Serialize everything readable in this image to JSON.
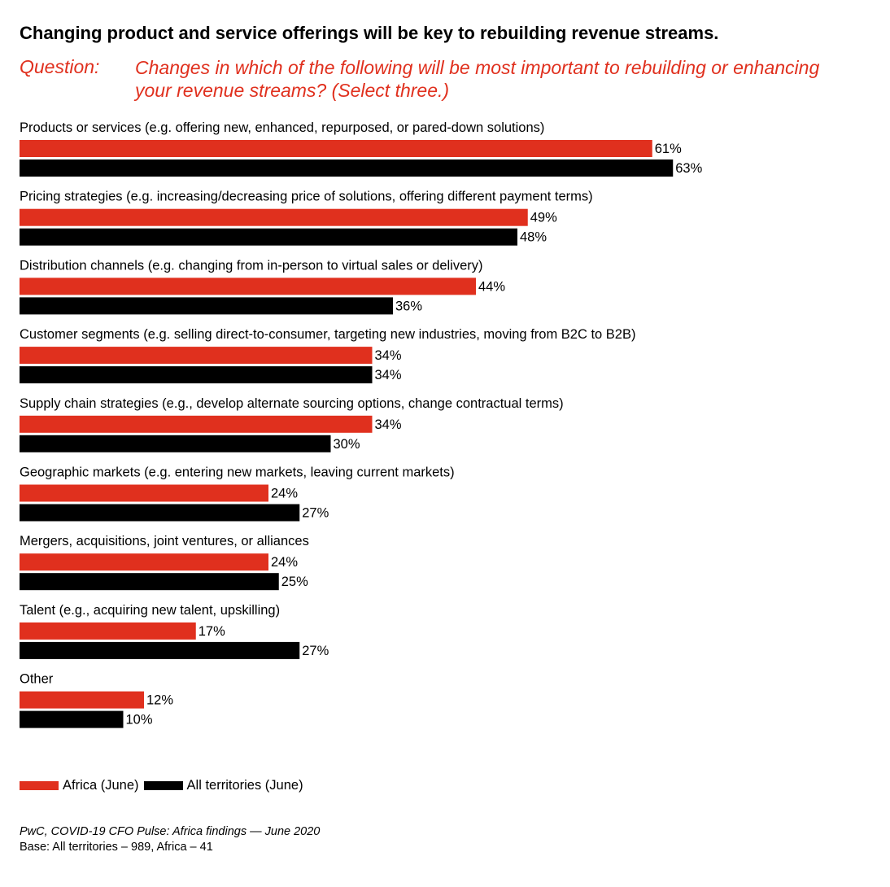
{
  "title": "Changing product and service offerings will be key to rebuilding revenue streams.",
  "question_label": "Question:",
  "question_text": "Changes in which of the following will be most important to rebuilding or enhancing your revenue streams? (Select three.)",
  "colors": {
    "africa": "#e0301e",
    "all_territories": "#000000"
  },
  "chart_data": {
    "type": "bar",
    "orientation": "horizontal",
    "categories": [
      "Products or services (e.g. offering new, enhanced, repurposed, or pared-down solutions)",
      "Pricing strategies (e.g. increasing/decreasing price of solutions, offering different payment terms)",
      "Distribution channels (e.g. changing from in-person to virtual sales or delivery)",
      "Customer segments (e.g. selling direct-to-consumer, targeting new industries, moving from B2C to B2B)",
      "Supply chain strategies (e.g., develop alternate sourcing options, change contractual terms)",
      "Geographic markets (e.g. entering new markets, leaving current markets)",
      "Mergers, acquisitions, joint ventures, or alliances",
      "Talent (e.g., acquiring new talent, upskilling)",
      "Other"
    ],
    "series": [
      {
        "name": "Africa (June)",
        "color": "#e0301e",
        "values": [
          61,
          49,
          44,
          34,
          34,
          24,
          24,
          17,
          12
        ],
        "labels": [
          "61%",
          "49%",
          "44%",
          "34%",
          "34%",
          "24%",
          "24%",
          "17%",
          "12%"
        ]
      },
      {
        "name": "All territories (June)",
        "color": "#000000",
        "values": [
          63,
          48,
          36,
          34,
          30,
          27,
          25,
          27,
          10
        ],
        "labels": [
          "63%",
          "48%",
          "36%",
          "34%",
          "30%",
          "27%",
          "25%",
          "27%",
          "10%"
        ]
      }
    ],
    "unit": "%",
    "legend_position": "bottom-left",
    "grid": false
  },
  "legend": {
    "africa_label": "Africa (June)",
    "all_label": "All territories (June)"
  },
  "source": "PwC, COVID-19 CFO Pulse: Africa findings — June 2020",
  "base": "Base: All territories – 989, Africa – 41"
}
